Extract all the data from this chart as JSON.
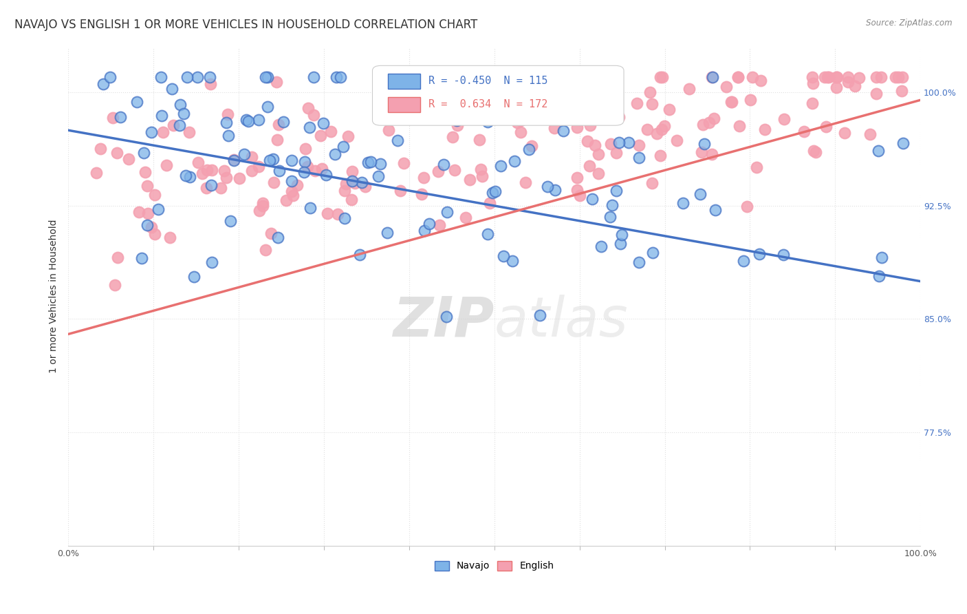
{
  "title": "NAVAJO VS ENGLISH 1 OR MORE VEHICLES IN HOUSEHOLD CORRELATION CHART",
  "source": "Source: ZipAtlas.com",
  "ylabel": "1 or more Vehicles in Household",
  "ytick_labels": [
    "77.5%",
    "85.0%",
    "92.5%",
    "100.0%"
  ],
  "ytick_values": [
    0.775,
    0.85,
    0.925,
    1.0
  ],
  "xlim": [
    0.0,
    1.0
  ],
  "ylim": [
    0.7,
    1.03
  ],
  "navajo_R": -0.45,
  "navajo_N": 115,
  "english_R": 0.634,
  "english_N": 172,
  "navajo_color": "#7EB3E8",
  "english_color": "#F4A0B0",
  "navajo_line_color": "#4472C4",
  "english_line_color": "#E87070",
  "watermark_zip": "ZIP",
  "watermark_atlas": "atlas",
  "background_color": "#FFFFFF",
  "grid_color": "#E0E0E0",
  "title_fontsize": 12,
  "axis_label_fontsize": 10,
  "tick_fontsize": 9,
  "legend_fontsize": 11
}
